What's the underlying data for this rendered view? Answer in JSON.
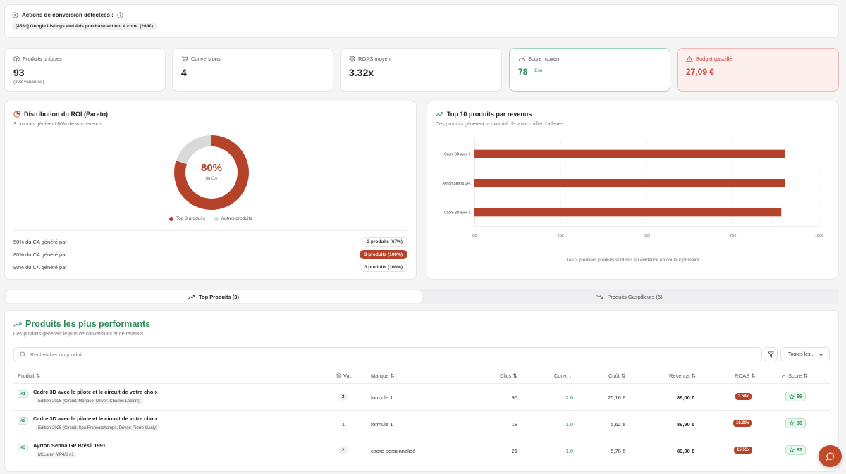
{
  "conversion": {
    "title": "Actions de conversion détectées :",
    "pill": "[453c] Google Listings and Ads purchase action: 4 conv. (269€)"
  },
  "kpis": {
    "products": {
      "label": "Produits uniques",
      "value": "93",
      "sub": "(203 variantes)"
    },
    "conversions": {
      "label": "Conversions",
      "value": "4"
    },
    "roas": {
      "label": "ROAS moyen",
      "value": "3.32x"
    },
    "score": {
      "label": "Score moyen",
      "value": "78",
      "sub": "Bon",
      "color": "#2e8b57"
    },
    "waste": {
      "label": "Budget gaspillé",
      "value": "27,09 €",
      "color": "#c9463a"
    }
  },
  "pareto": {
    "title": "Distribution du ROI (Pareto)",
    "subtitle": "3 produits génèrent 80% de vos revenus",
    "center_value": "80%",
    "center_label": "du CA",
    "share": 0.8,
    "legend": [
      "Top 3 produits",
      "Autres produits"
    ],
    "colors": {
      "top": "#b5432a",
      "others": "#d9d9d9"
    },
    "rows": [
      {
        "label": "50% du CA généré par",
        "badge": "2 produits (67%)",
        "active": false
      },
      {
        "label": "80% du CA généré par",
        "badge": "3 produits (100%)",
        "active": true
      },
      {
        "label": "90% du CA généré par",
        "badge": "3 produits (100%)",
        "active": false
      }
    ]
  },
  "top10": {
    "title": "Top 10 produits par revenus",
    "subtitle": "Ces produits génèrent la majorité de votre chiffre d'affaires",
    "footnote": "Les 3 premiers produits sont mis en évidence en couleur primaire"
  },
  "chart_data": {
    "type": "bar",
    "orientation": "horizontal",
    "categories": [
      "Cadre 3D avec l...",
      "Ayrton Senna GP...",
      "Cadre 3D avec l..."
    ],
    "values": [
      90,
      90,
      89
    ],
    "xlim": [
      0,
      100
    ],
    "xticks": [
      "0€",
      "25€",
      "50€",
      "75€",
      "100€"
    ],
    "tick_values": [
      0,
      25,
      50,
      75,
      100
    ],
    "grid": true,
    "bar_color": "#b5432a"
  },
  "tabs": [
    {
      "label": "Top Produits (3)",
      "active": true
    },
    {
      "label": "Produits Gaspilleurs (6)",
      "active": false
    }
  ],
  "table": {
    "title": "Produits les plus performants",
    "subtitle": "Ces produits génèrent le plus de conversions et de revenus",
    "search_placeholder": "Rechercher un produit...",
    "filter_value": "Toutes les...",
    "headers": {
      "product": "Produit ⇅",
      "var": "Var.",
      "brand": "Marque ⇅",
      "clicks": "Clics ⇅",
      "conv": "Conv. ↓",
      "cost": "Coût ⇅",
      "revenue": "Revenus ⇅",
      "roas": "ROAS ⇅",
      "score": "Score ⇅"
    },
    "rows": [
      {
        "rank": "#1",
        "name": "Cadre 3D avec le pilote et le circuit de votre choix",
        "variant": "Edition 2025 (Circuit: Monaco, Driver: Charles Leclerc)",
        "var": "3",
        "var_badge": true,
        "brand": "formule 1",
        "clicks": "95",
        "conv": "2.0",
        "cost": "25,16 €",
        "revenue": "89,00 €",
        "roas": "3.54x",
        "score": "66"
      },
      {
        "rank": "#2",
        "name": "Cadre 3D avec le pilote et le circuit de votre choix",
        "variant": "Edition 2025 (Circuit: Spa Francorchamps, Driver: Pierre Gasly)",
        "var": "1",
        "var_badge": false,
        "brand": "formule 1",
        "clicks": "18",
        "conv": "1.0",
        "cost": "5,62 €",
        "revenue": "89,90 €",
        "roas": "16.00x",
        "score": "86"
      },
      {
        "rank": "#3",
        "name": "Ayrton Senna GP Brésil 1991",
        "variant": "McLaren MP4/6 #1",
        "var": "2",
        "var_badge": true,
        "brand": "cadre personnalisé",
        "clicks": "21",
        "conv": "1.0",
        "cost": "5,78 €",
        "revenue": "89,90 €",
        "roas": "15.55x",
        "score": "82"
      }
    ]
  }
}
